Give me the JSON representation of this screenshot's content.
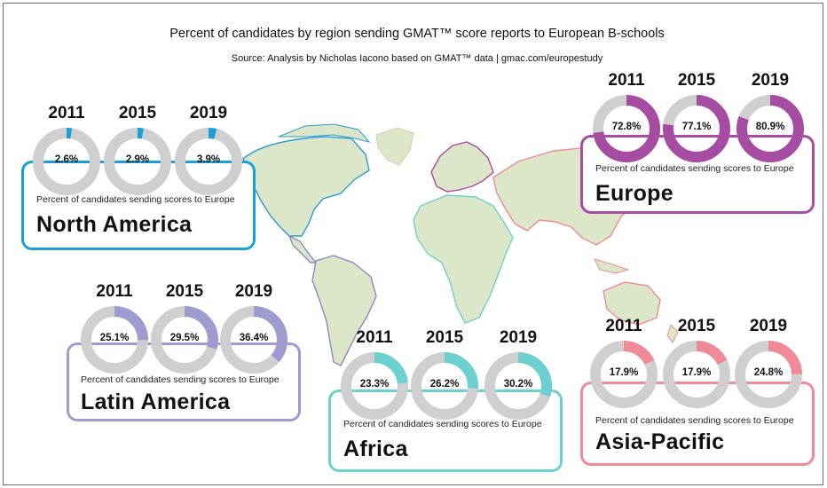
{
  "title": "Percent of candidates by region sending GMAT™ score reports to European B-schools",
  "source": "Source: Analysis by Nicholas Iacono based on GMAT™ data   |   gmac.com/europestudy",
  "caption": "Percent of candidates sending scores to Europe",
  "chart_data": {
    "type": "pie",
    "years": [
      "2011",
      "2015",
      "2019"
    ],
    "unit": "%",
    "regions": [
      {
        "key": "na",
        "name": "North America",
        "color": "#1a9fd9",
        "values": [
          2.6,
          2.9,
          3.9
        ],
        "labels": [
          "2.6%",
          "2.9%",
          "3.9%"
        ]
      },
      {
        "key": "la",
        "name": "Latin America",
        "color": "#9d9bcf",
        "values": [
          25.1,
          29.5,
          36.4
        ],
        "labels": [
          "25.1%",
          "29.5%",
          "36.4%"
        ]
      },
      {
        "key": "af",
        "name": "Africa",
        "color": "#6ccfd0",
        "values": [
          23.3,
          26.2,
          30.2
        ],
        "labels": [
          "23.3%",
          "26.2%",
          "30.2%"
        ]
      },
      {
        "key": "eu",
        "name": "Europe",
        "color": "#a64ca3",
        "values": [
          72.8,
          77.1,
          80.9
        ],
        "labels": [
          "72.8%",
          "77.1%",
          "80.9%"
        ]
      },
      {
        "key": "ap",
        "name": "Asia-Pacific",
        "color": "#f08a96",
        "values": [
          17.9,
          17.9,
          24.8
        ],
        "labels": [
          "17.9%",
          "17.9%",
          "24.8%"
        ]
      }
    ],
    "remainder_color": "#cfcfcf"
  }
}
